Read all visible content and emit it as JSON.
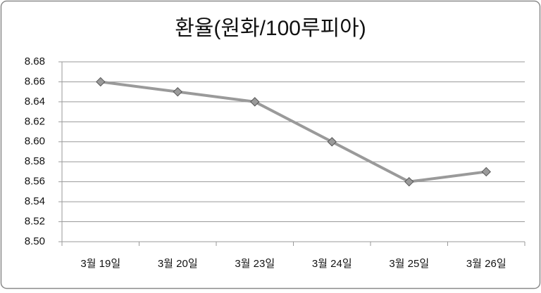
{
  "chart_data": {
    "type": "line",
    "title": "환율(원화/100루피아)",
    "categories": [
      "3월 19일",
      "3월 20일",
      "3월 23일",
      "3월 24일",
      "3월 25일",
      "3월 26일"
    ],
    "series": [
      {
        "name": "환율",
        "color": "#9a9a9a",
        "values": [
          8.66,
          8.65,
          8.64,
          8.6,
          8.56,
          8.57
        ]
      }
    ],
    "ylim": [
      8.5,
      8.68
    ],
    "yticks": [
      {
        "value": 8.5,
        "label": "8.50"
      },
      8.52,
      8.54,
      8.56,
      8.58,
      {
        "value": 8.6,
        "label": "8.60"
      },
      8.62,
      8.64,
      8.66,
      8.68
    ],
    "grid": true
  }
}
